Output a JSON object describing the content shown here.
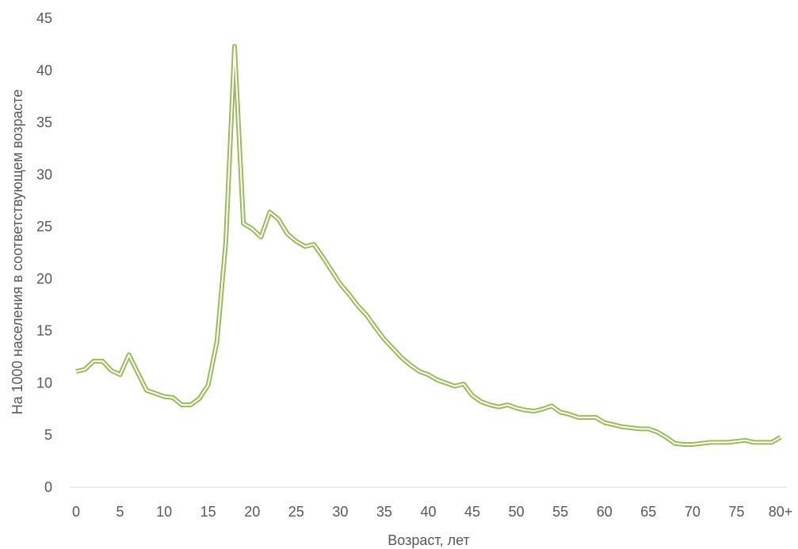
{
  "chart_data": {
    "type": "line",
    "title": "",
    "xlabel": "Возраст, лет",
    "ylabel": "На 1000 населения в соответствующем возрасте",
    "x_tick_labels": [
      "0",
      "5",
      "10",
      "15",
      "20",
      "25",
      "30",
      "35",
      "40",
      "45",
      "50",
      "55",
      "60",
      "65",
      "70",
      "75",
      "80+"
    ],
    "y_tick_labels": [
      "0",
      "5",
      "10",
      "15",
      "20",
      "25",
      "30",
      "35",
      "40",
      "45"
    ],
    "ylim": [
      0,
      45
    ],
    "xlim": [
      0,
      80
    ],
    "grid": false,
    "line_color": "#9bbb59",
    "series": [
      {
        "x": [
          0,
          1,
          2,
          3,
          4,
          5,
          6,
          7,
          8,
          9,
          10,
          11,
          12,
          13,
          14,
          15,
          16,
          17,
          18,
          19,
          20,
          21,
          22,
          23,
          24,
          25,
          26,
          27,
          28,
          29,
          30,
          31,
          32,
          33,
          34,
          35,
          36,
          37,
          38,
          39,
          40,
          41,
          42,
          43,
          44,
          45,
          46,
          47,
          48,
          49,
          50,
          51,
          52,
          53,
          54,
          55,
          56,
          57,
          58,
          59,
          60,
          61,
          62,
          63,
          64,
          65,
          66,
          67,
          68,
          69,
          70,
          71,
          72,
          73,
          74,
          75,
          76,
          77,
          78,
          79,
          80
        ],
        "values": [
          11.1,
          11.3,
          12.1,
          12.1,
          11.2,
          10.8,
          12.7,
          11.0,
          9.3,
          9.0,
          8.7,
          8.6,
          7.9,
          7.9,
          8.5,
          9.8,
          14.0,
          23.5,
          42.3,
          25.3,
          24.8,
          24.0,
          26.4,
          25.7,
          24.3,
          23.6,
          23.1,
          23.3,
          22.1,
          20.8,
          19.5,
          18.5,
          17.4,
          16.5,
          15.3,
          14.2,
          13.3,
          12.4,
          11.7,
          11.1,
          10.8,
          10.3,
          10.0,
          9.7,
          9.9,
          8.8,
          8.2,
          7.9,
          7.7,
          7.9,
          7.6,
          7.4,
          7.3,
          7.5,
          7.8,
          7.2,
          7.0,
          6.7,
          6.7,
          6.7,
          6.2,
          6.0,
          5.8,
          5.7,
          5.6,
          5.6,
          5.3,
          4.8,
          4.2,
          4.1,
          4.1,
          4.2,
          4.3,
          4.3,
          4.3,
          4.4,
          4.5,
          4.3,
          4.3,
          4.3,
          4.8
        ]
      }
    ]
  }
}
